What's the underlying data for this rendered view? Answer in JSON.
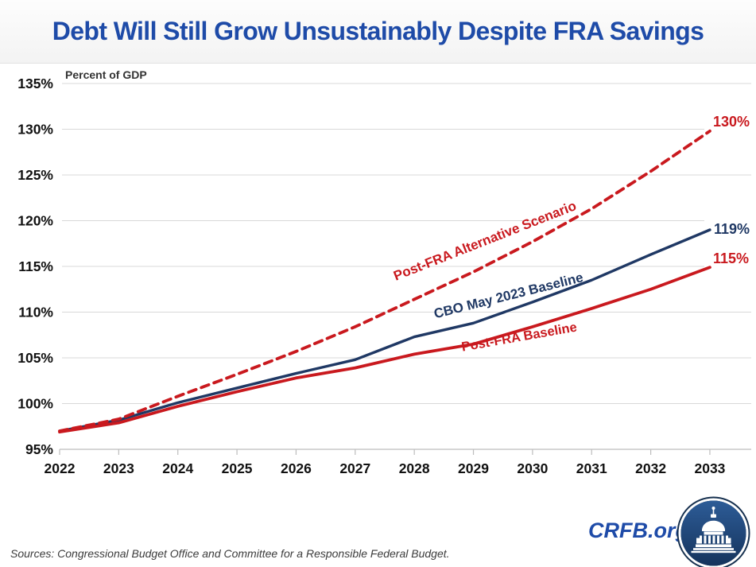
{
  "header": {
    "title": "Debt Will Still Grow Unsustainably Despite FRA Savings"
  },
  "colors": {
    "title_blue": "#1e4ba8",
    "line_red": "#c9191e",
    "line_navy": "#1f3864",
    "gridline": "#d8d8d8"
  },
  "chart_data": {
    "type": "line",
    "title": "Debt Will Still Grow Unsustainably Despite FRA Savings",
    "annotation": "Percent of GDP",
    "xlabel": "",
    "ylabel": "Percent of GDP",
    "grid": "horizontal",
    "legend_position": "labels-on-lines",
    "ylim": [
      95,
      135
    ],
    "y_ticks": [
      "135%",
      "130%",
      "125%",
      "120%",
      "115%",
      "110%",
      "105%",
      "100%",
      "95%"
    ],
    "categories": [
      "2022",
      "2023",
      "2024",
      "2025",
      "2026",
      "2027",
      "2028",
      "2029",
      "2030",
      "2031",
      "2032",
      "2033"
    ],
    "series": [
      {
        "name": "Post-FRA Alternative Scenario",
        "style": "dashed",
        "color": "#c9191e",
        "end_label": "130%",
        "values": [
          97.0,
          98.3,
          100.8,
          103.2,
          105.7,
          108.4,
          111.4,
          114.4,
          117.7,
          121.3,
          125.4,
          129.8
        ]
      },
      {
        "name": "CBO May 2023 Baseline",
        "style": "solid",
        "color": "#1f3864",
        "end_label": "119%",
        "values": [
          97.0,
          98.2,
          100.1,
          101.7,
          103.3,
          104.8,
          107.3,
          108.8,
          111.1,
          113.5,
          116.3,
          119.0
        ]
      },
      {
        "name": "Post-FRA Baseline",
        "style": "solid",
        "color": "#c9191e",
        "end_label": "115%",
        "values": [
          96.9,
          97.9,
          99.7,
          101.3,
          102.8,
          103.9,
          105.4,
          106.5,
          108.4,
          110.4,
          112.5,
          114.9
        ]
      }
    ]
  },
  "footer": {
    "sources": "Sources: Congressional Budget Office and Committee for a Responsible Federal Budget.",
    "watermark": "CRFB.org"
  }
}
